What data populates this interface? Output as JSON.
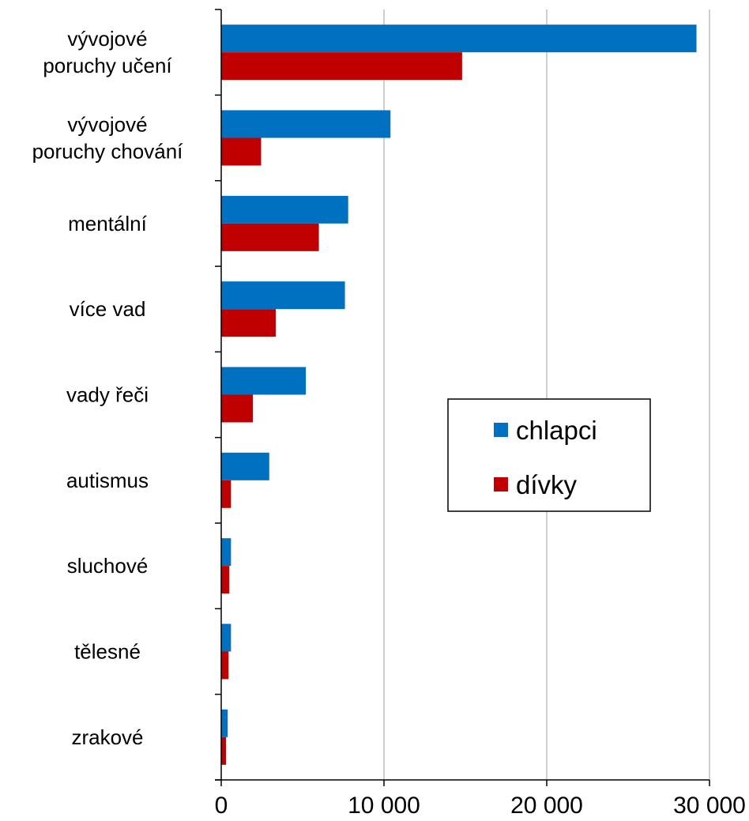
{
  "chart_data": {
    "type": "bar",
    "orientation": "horizontal",
    "categories": [
      [
        "vývojové",
        "poruchy učení"
      ],
      [
        "vývojové",
        "poruchy chování"
      ],
      [
        "mentální"
      ],
      [
        "více vad"
      ],
      [
        "vady řeči"
      ],
      [
        "autismus"
      ],
      [
        "sluchové"
      ],
      [
        "tělesné"
      ],
      [
        "zrakové"
      ]
    ],
    "series": [
      {
        "name": "chlapci",
        "color": "#0070C0",
        "values": [
          29200,
          10400,
          7800,
          7600,
          5200,
          2950,
          600,
          600,
          400
        ]
      },
      {
        "name": "dívky",
        "color": "#C00000",
        "values": [
          14800,
          2450,
          6000,
          3350,
          1950,
          600,
          500,
          450,
          300
        ]
      }
    ],
    "xlim": [
      0,
      30000
    ],
    "xticks": [
      0,
      10000,
      20000,
      30000
    ],
    "xtick_labels": [
      "0",
      "10 000",
      "20 000",
      "30 000"
    ],
    "grid": "vertical",
    "grid_color": "#BFBFBF",
    "legend_position": "center-right"
  }
}
